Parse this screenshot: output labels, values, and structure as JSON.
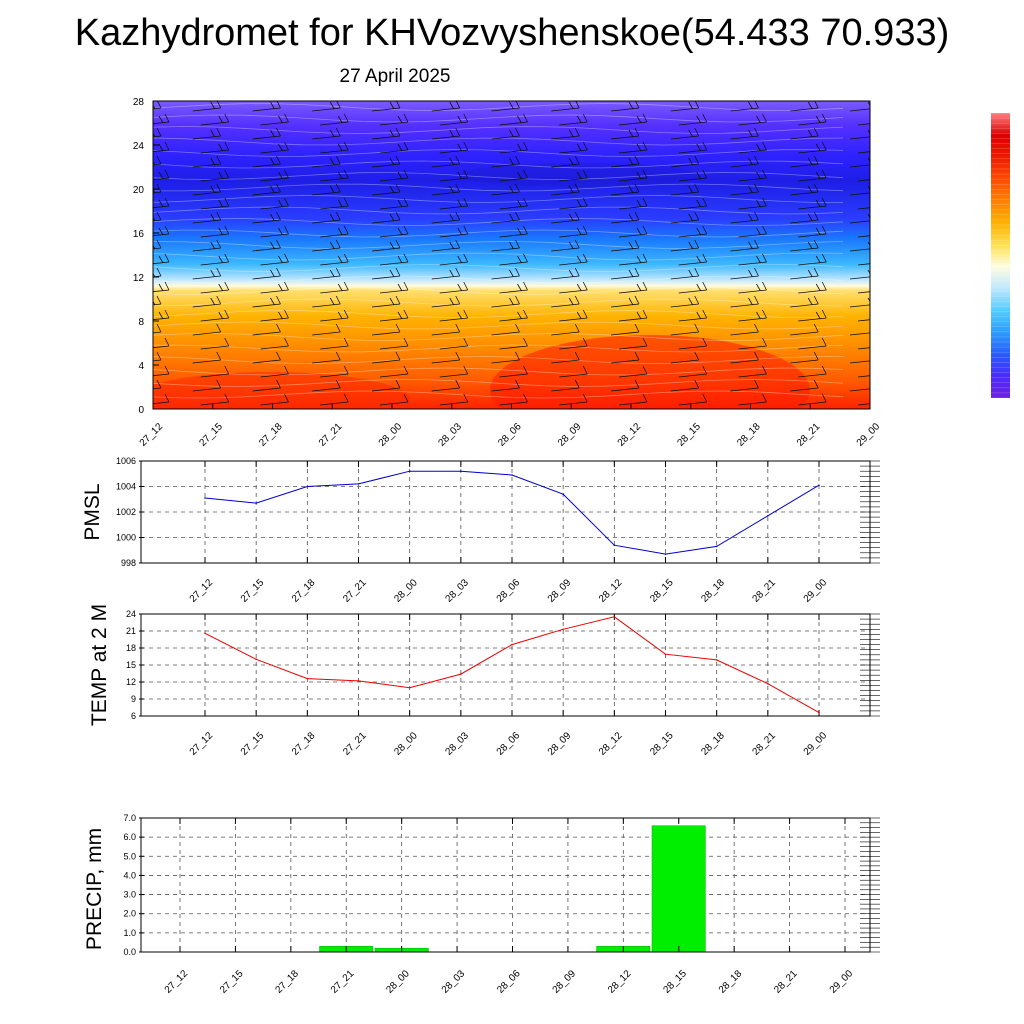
{
  "page": {
    "title": "Kazhydromet for KHVozvyshenskoe(54.433 70.933)",
    "subtitle": "27 April 2025"
  },
  "chart_data": [
    {
      "type": "heatmap",
      "title": "",
      "categories": [
        "27_12",
        "27_15",
        "27_18",
        "27_21",
        "28_00",
        "28_03",
        "28_06",
        "28_09",
        "28_12",
        "28_15",
        "28_18",
        "28_21",
        "29_00"
      ],
      "yticks": [
        "0",
        "4",
        "8",
        "12",
        "16",
        "20",
        "24",
        "28"
      ],
      "ylim": [
        0,
        28
      ],
      "colors": [
        "#ff2200",
        "#ff5a00",
        "#ff8a00",
        "#ffb300",
        "#ffe070",
        "#fffbe0",
        "#bfe6ff",
        "#3cb8ff",
        "#1a7aff",
        "#2a3cff",
        "#1e1ee6",
        "#2d22ff",
        "#5530ff",
        "#7a5aff"
      ],
      "colorbar": [
        "#7020e0",
        "#4a2cff",
        "#2a5cff",
        "#2b9cff",
        "#55ccff",
        "#c0e8ff",
        "#fffde0",
        "#ffe050",
        "#ffb000",
        "#ff8000",
        "#ff4a00",
        "#ee1a00",
        "#dd0000",
        "#ff8080"
      ],
      "grid": false
    },
    {
      "type": "line",
      "ylabel": "PMSL",
      "categories": [
        "27_12",
        "27_15",
        "27_18",
        "27_21",
        "28_00",
        "28_03",
        "28_06",
        "28_09",
        "28_12",
        "28_15",
        "28_18",
        "28_21",
        "29_00"
      ],
      "yticks": [
        "998",
        "1000",
        "1002",
        "1004",
        "1006"
      ],
      "ylim": [
        998,
        1006
      ],
      "color": "#0000cc",
      "series": [
        {
          "values": [
            1003.1,
            1002.7,
            1004.0,
            1004.2,
            1005.2,
            1005.2,
            1004.9,
            1003.4,
            999.4,
            998.7,
            999.3,
            1001.7,
            1004.1
          ]
        }
      ],
      "grid": true
    },
    {
      "type": "line",
      "ylabel": "TEMP at 2 M",
      "categories": [
        "27_12",
        "27_15",
        "27_18",
        "27_21",
        "28_00",
        "28_03",
        "28_06",
        "28_09",
        "28_12",
        "28_15",
        "28_18",
        "28_21",
        "29_00"
      ],
      "yticks": [
        "6",
        "9",
        "12",
        "15",
        "18",
        "21",
        "24"
      ],
      "ylim": [
        6,
        24
      ],
      "color": "#ee0000",
      "series": [
        {
          "values": [
            20.6,
            16.0,
            12.6,
            12.2,
            11.0,
            13.4,
            18.6,
            21.3,
            23.5,
            16.9,
            15.9,
            11.7,
            6.6
          ]
        }
      ],
      "grid": true
    },
    {
      "type": "bar",
      "ylabel": "PRECIP, mm",
      "categories": [
        "27_12",
        "27_15",
        "27_18",
        "27_21",
        "28_00",
        "28_03",
        "28_06",
        "28_09",
        "28_12",
        "28_15",
        "28_18",
        "28_21",
        "29_00"
      ],
      "yticks": [
        "0.0",
        "1.0",
        "2.0",
        "3.0",
        "4.0",
        "5.0",
        "6.0",
        "7.0"
      ],
      "ylim": [
        0,
        7
      ],
      "color": "#00ee00",
      "values": [
        0,
        0,
        0,
        0.3,
        0.2,
        0,
        0,
        0,
        0.3,
        6.6,
        0,
        0,
        0
      ],
      "grid": true
    }
  ]
}
